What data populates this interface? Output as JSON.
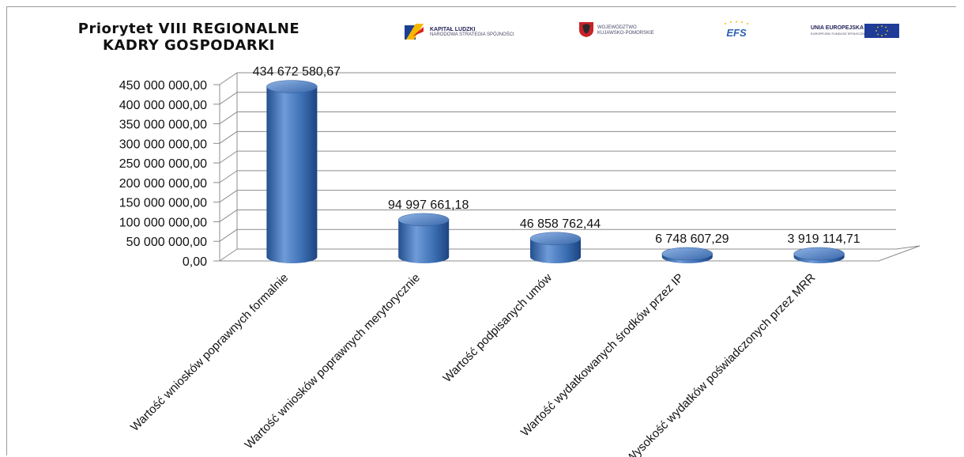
{
  "title": {
    "line1": "Priorytet VIII REGIONALNE",
    "line2": "KADRY GOSPODARKI"
  },
  "logos": {
    "kapital": {
      "name": "KAPITAŁ LUDZKI",
      "subtitle": "NARODOWA STRATEGIA SPÓJNOŚCI",
      "icon": "kapital-ludzki-logo"
    },
    "wojewodztwo": {
      "name": "WOJEWÓDZTWO",
      "subtitle": "KUJAWSKO-POMORSKIE",
      "icon": "coat-of-arms-icon"
    },
    "efs": {
      "name": "EFS",
      "icon": "efs-logo"
    },
    "ue": {
      "name": "UNIA EUROPEJSKA",
      "subtitle": "EUROPEJSKI FUNDUSZ SPOŁECZNY",
      "icon": "eu-flag-icon"
    }
  },
  "colors": {
    "bar": "#3c6fb4",
    "bar_dark": "#1f4a86",
    "bar_light": "#7fa7de",
    "grid": "#8c8c8c",
    "text": "#111111"
  },
  "chart_data": {
    "type": "bar",
    "categories": [
      "Wartość wniosków poprawnych formalnie",
      "Wartość wniosków poprawnych merytorycznie",
      "Wartość podpisanych umów",
      "Wartość wydatkowanych środków przez IP",
      "Wysokość wydatków poświadczonych przez MRR"
    ],
    "values": [
      434672580.67,
      94997661.18,
      46858762.44,
      6748607.29,
      3919114.71
    ],
    "data_labels": [
      "434 672 580,67",
      "94 997 661,18",
      "46 858 762,44",
      "6 748 607,29",
      "3 919 114,71"
    ],
    "y_ticks": [
      "0,00",
      "50 000 000,00",
      "100 000 000,00",
      "150 000 000,00",
      "200 000 000,00",
      "250 000 000,00",
      "300 000 000,00",
      "350 000 000,00",
      "400 000 000,00",
      "450 000 000,00"
    ],
    "ylim": [
      0,
      450000000
    ],
    "bar_shape": "cylinder",
    "grid": true,
    "legend": "none",
    "xlabel": "",
    "ylabel": ""
  }
}
